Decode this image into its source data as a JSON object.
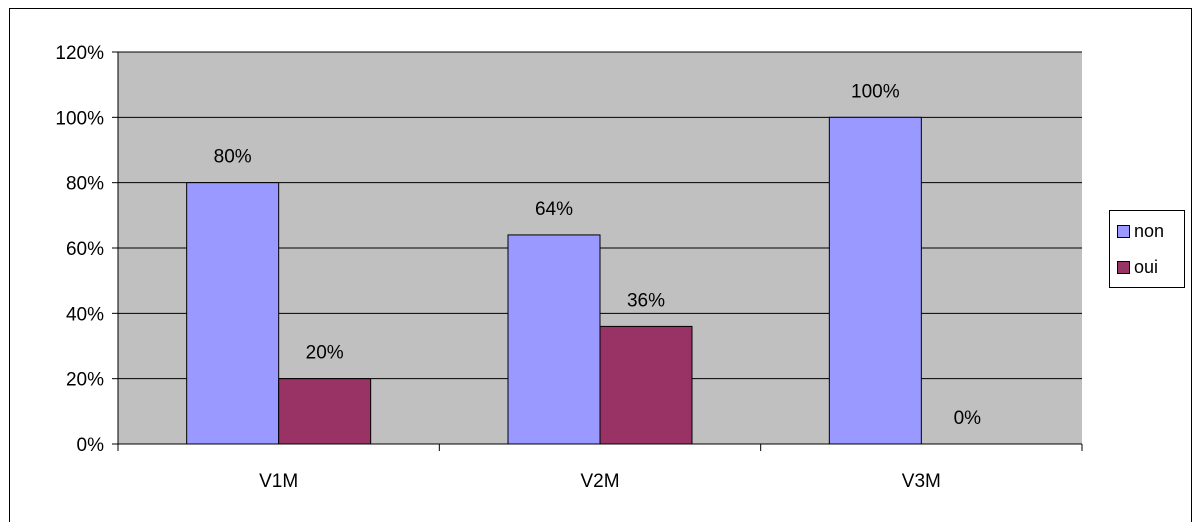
{
  "chart_data": {
    "type": "bar",
    "categories": [
      "V1M",
      "V2M",
      "V3M"
    ],
    "series": [
      {
        "name": "non",
        "values": [
          80,
          64,
          100
        ],
        "labels": [
          "80%",
          "64%",
          "100%"
        ],
        "color": "#9999ff"
      },
      {
        "name": "oui",
        "values": [
          20,
          36,
          0
        ],
        "labels": [
          "20%",
          "36%",
          "0%"
        ],
        "color": "#993366"
      }
    ],
    "y_ticks": [
      "0%",
      "20%",
      "40%",
      "60%",
      "80%",
      "100%",
      "120%"
    ],
    "ylim": [
      0,
      120
    ],
    "grid": true,
    "plot_background": "#c0c0c0",
    "legend_position": "right",
    "title": "",
    "xlabel": "",
    "ylabel": ""
  }
}
